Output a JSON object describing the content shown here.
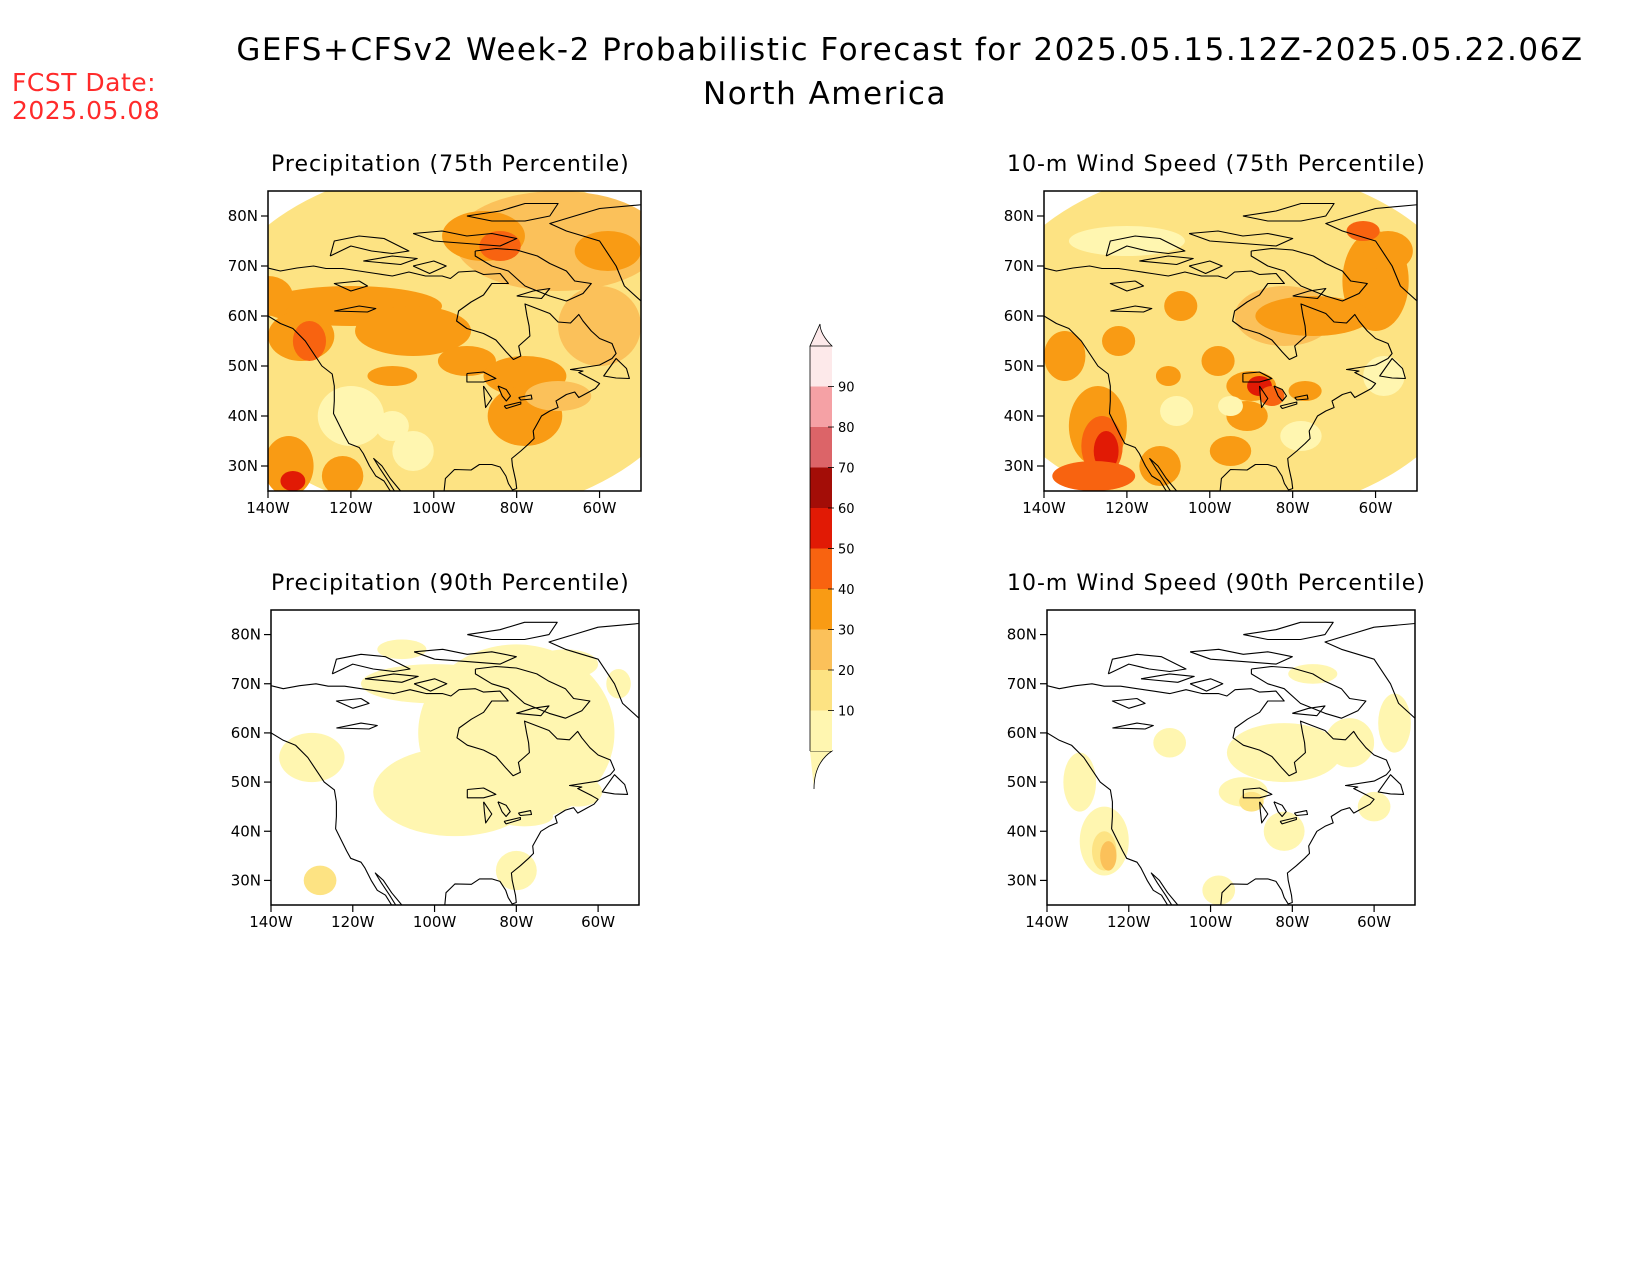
{
  "header": {
    "title": "GEFS+CFSv2 Week-2 Probabilistic Forecast for 2025.05.15.12Z-2025.05.22.06Z",
    "subtitle": "North America",
    "fcst_label": "FCST Date:",
    "fcst_value": "2025.05.08"
  },
  "axes": {
    "lat_ticks": [
      "80N",
      "70N",
      "60N",
      "50N",
      "40N",
      "30N"
    ],
    "lon_ticks": [
      "140W",
      "120W",
      "100W",
      "80W",
      "60W"
    ]
  },
  "colorbar": {
    "levels": [
      "10",
      "20",
      "30",
      "40",
      "50",
      "60",
      "70",
      "80",
      "90"
    ],
    "colors": [
      "#fff6b0",
      "#fde383",
      "#fbc15a",
      "#f99b14",
      "#f86310",
      "#e11a05",
      "#a30d07",
      "#dc6468",
      "#f5a1a5",
      "#fde9ea"
    ]
  },
  "panels": [
    {
      "id": "precip-75",
      "title": "Precipitation (75th Percentile)",
      "intensity": "high",
      "variable": "precip"
    },
    {
      "id": "wind-75",
      "title": "10-m Wind Speed (75th Percentile)",
      "intensity": "high",
      "variable": "wind"
    },
    {
      "id": "precip-90",
      "title": "Precipitation (90th Percentile)",
      "intensity": "low",
      "variable": "precip"
    },
    {
      "id": "wind-90",
      "title": "10-m Wind Speed (90th Percentile)",
      "intensity": "low",
      "variable": "wind"
    }
  ]
}
